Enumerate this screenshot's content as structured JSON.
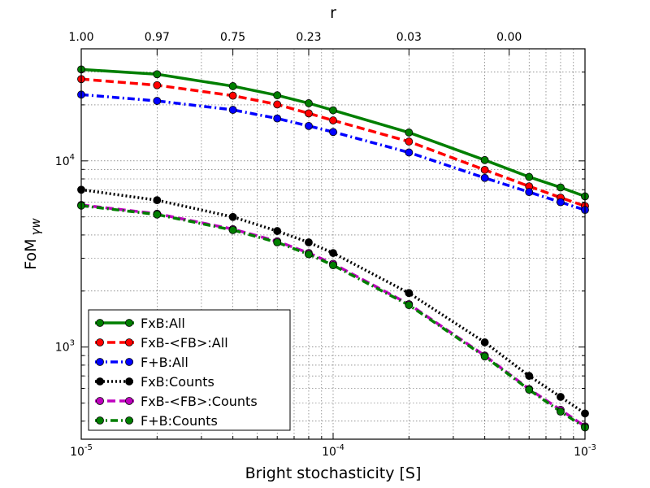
{
  "chart_data": {
    "type": "line",
    "title": "",
    "xlabel": "Bright stochasticity [S]",
    "ylabel": "FoM",
    "ylabel_subscript": "γw",
    "top_axis_label": "r",
    "xscale": "log",
    "yscale": "log",
    "xlim": [
      1e-05,
      0.001
    ],
    "ylim": [
      320,
      40000
    ],
    "grid": true,
    "legend_position": "lower-left",
    "x_tick_labels": [
      {
        "value": 1e-05,
        "base": "10",
        "exp": "-5"
      },
      {
        "value": 0.0001,
        "base": "10",
        "exp": "-4"
      },
      {
        "value": 0.001,
        "base": "10",
        "exp": "-3"
      }
    ],
    "y_tick_labels": [
      {
        "value": 1000,
        "base": "10",
        "exp": "3"
      },
      {
        "value": 10000,
        "base": "10",
        "exp": "4"
      }
    ],
    "top_ticks": [
      {
        "x": 1e-05,
        "label": "1.00"
      },
      {
        "x": 2e-05,
        "label": "0.97"
      },
      {
        "x": 4e-05,
        "label": "0.75"
      },
      {
        "x": 8e-05,
        "label": "0.23"
      },
      {
        "x": 0.0002,
        "label": "0.03"
      },
      {
        "x": 0.0005,
        "label": "0.00"
      }
    ],
    "x": [
      1e-05,
      2e-05,
      4e-05,
      6e-05,
      8e-05,
      0.0001,
      0.0002,
      0.0004,
      0.0006,
      0.0008,
      0.001
    ],
    "series": [
      {
        "name": "FxB:All",
        "color": "#007f00",
        "dash": "solid",
        "values": [
          31000,
          29200,
          25200,
          22500,
          20400,
          18700,
          14200,
          10100,
          8200,
          7200,
          6450
        ]
      },
      {
        "name": "FxB-<FB>:All",
        "color": "#ff0000",
        "dash": "dashed",
        "values": [
          27500,
          25500,
          22400,
          20100,
          18000,
          16500,
          12700,
          8950,
          7300,
          6350,
          5720
        ]
      },
      {
        "name": "F+B:All",
        "color": "#0000ff",
        "dash": "dashdot",
        "values": [
          22700,
          21000,
          18800,
          16900,
          15400,
          14300,
          11100,
          8100,
          6800,
          6000,
          5450
        ]
      },
      {
        "name": "FxB:Counts",
        "color": "#000000",
        "dash": "dotted",
        "values": [
          7000,
          6150,
          5000,
          4200,
          3650,
          3200,
          1950,
          1060,
          700,
          540,
          440
        ]
      },
      {
        "name": "FxB-<FB>:Counts",
        "color": "#bf00bf",
        "dash": "dashed",
        "values": [
          5800,
          5200,
          4300,
          3700,
          3200,
          2800,
          1700,
          900,
          595,
          460,
          375
        ]
      },
      {
        "name": "F+B:Counts",
        "color": "#007f00",
        "dash": "dashdot",
        "values": [
          5750,
          5150,
          4250,
          3650,
          3150,
          2750,
          1680,
          890,
          590,
          450,
          370
        ]
      }
    ]
  }
}
